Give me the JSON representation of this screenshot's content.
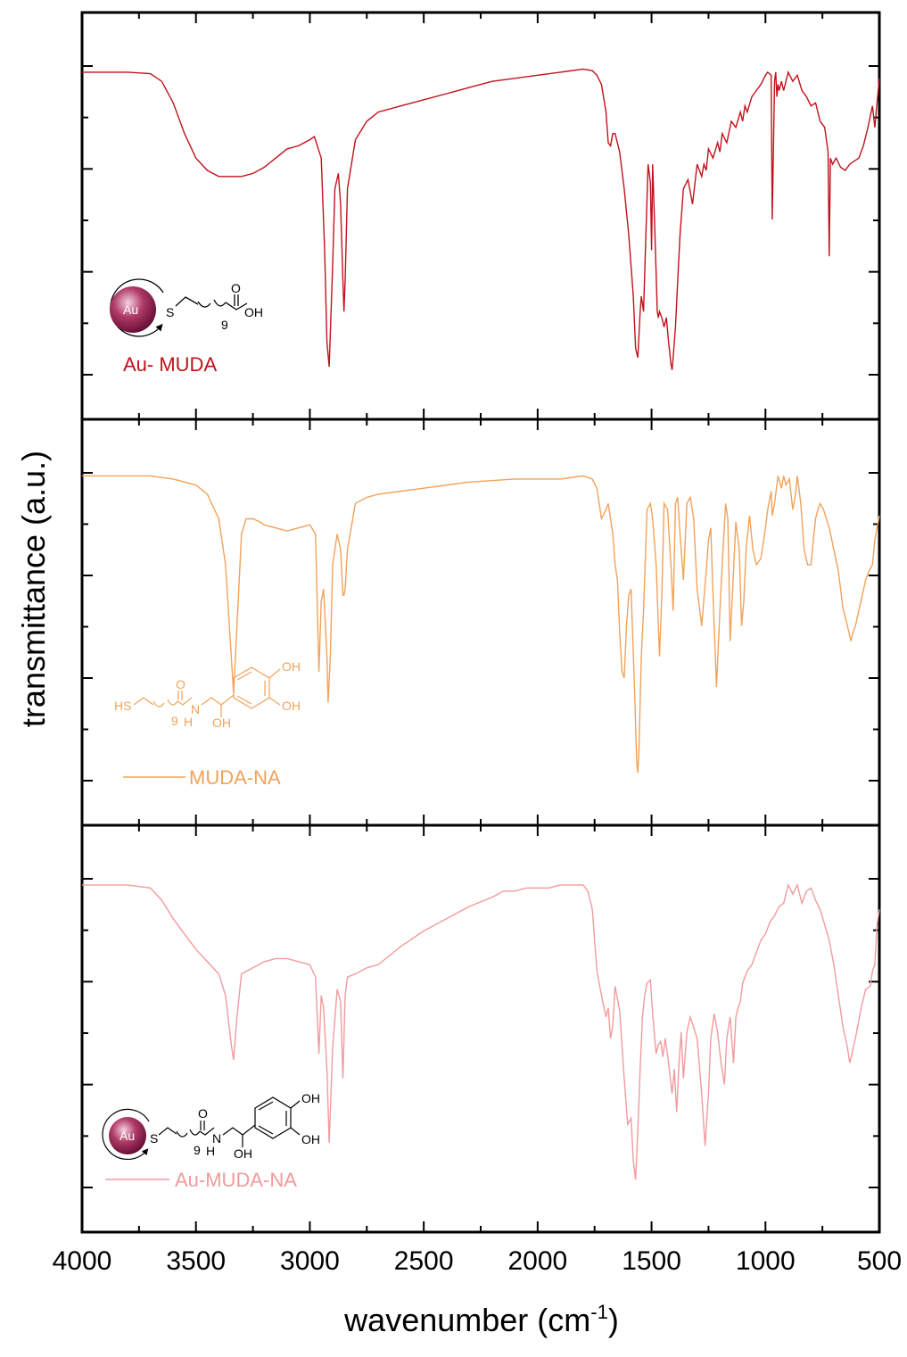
{
  "chart_data": {
    "type": "line",
    "xlabel": "wavenumber (cm",
    "xlabel_sup": "-1",
    "xlabel_end": ")",
    "ylabel": "transmittance (a.u.)",
    "xlim": [
      4000,
      500
    ],
    "x_reversed": true,
    "xticks": [
      "4000",
      "3500",
      "3000",
      "2500",
      "2000",
      "1500",
      "1000",
      "500"
    ],
    "grid": false,
    "panels": [
      {
        "name": "Au- MUDA",
        "color": "#c0121c",
        "legend_line": false,
        "structure": {
          "nanoparticle": "Au",
          "labels": [
            "Au",
            "S",
            "9",
            "O",
            "OH"
          ]
        },
        "x": [
          4000,
          3800,
          3700,
          3650,
          3600,
          3550,
          3500,
          3450,
          3400,
          3350,
          3300,
          3250,
          3200,
          3150,
          3100,
          3050,
          3000,
          2980,
          2950,
          2935,
          2925,
          2915,
          2900,
          2890,
          2875,
          2865,
          2855,
          2850,
          2845,
          2835,
          2800,
          2750,
          2700,
          2600,
          2500,
          2400,
          2300,
          2200,
          2100,
          2000,
          1900,
          1800,
          1760,
          1740,
          1720,
          1700,
          1690,
          1680,
          1670,
          1660,
          1640,
          1620,
          1600,
          1580,
          1570,
          1560,
          1550,
          1545,
          1535,
          1525,
          1515,
          1505,
          1500,
          1495,
          1485,
          1475,
          1470,
          1465,
          1455,
          1445,
          1435,
          1425,
          1415,
          1410,
          1405,
          1395,
          1385,
          1375,
          1360,
          1340,
          1320,
          1300,
          1280,
          1270,
          1260,
          1250,
          1230,
          1210,
          1200,
          1190,
          1170,
          1150,
          1130,
          1110,
          1100,
          1090,
          1080,
          1060,
          1040,
          1020,
          1000,
          990,
          975,
          970,
          960,
          955,
          950,
          945,
          940,
          930,
          920,
          900,
          880,
          860,
          840,
          820,
          800,
          780,
          760,
          740,
          725,
          720,
          715,
          705,
          690,
          670,
          650,
          630,
          610,
          590,
          570,
          550,
          530,
          520,
          510,
          500
        ],
        "y": [
          0.98,
          0.98,
          0.975,
          0.95,
          0.88,
          0.78,
          0.7,
          0.66,
          0.64,
          0.64,
          0.64,
          0.65,
          0.67,
          0.7,
          0.73,
          0.74,
          0.76,
          0.77,
          0.7,
          0.4,
          0.1,
          0.02,
          0.35,
          0.6,
          0.65,
          0.55,
          0.3,
          0.2,
          0.3,
          0.6,
          0.76,
          0.82,
          0.85,
          0.87,
          0.89,
          0.91,
          0.93,
          0.95,
          0.96,
          0.97,
          0.98,
          0.99,
          0.985,
          0.97,
          0.94,
          0.85,
          0.75,
          0.74,
          0.78,
          0.78,
          0.72,
          0.6,
          0.45,
          0.25,
          0.08,
          0.05,
          0.2,
          0.25,
          0.2,
          0.45,
          0.68,
          0.62,
          0.4,
          0.68,
          0.45,
          0.2,
          0.18,
          0.2,
          0.18,
          0.15,
          0.18,
          0.1,
          0.03,
          0.01,
          0.05,
          0.15,
          0.3,
          0.45,
          0.6,
          0.63,
          0.55,
          0.68,
          0.64,
          0.68,
          0.66,
          0.73,
          0.7,
          0.75,
          0.72,
          0.78,
          0.75,
          0.82,
          0.8,
          0.85,
          0.82,
          0.87,
          0.85,
          0.9,
          0.92,
          0.94,
          0.97,
          0.98,
          0.97,
          0.5,
          0.95,
          0.98,
          0.9,
          0.94,
          0.92,
          0.95,
          0.92,
          0.98,
          0.95,
          0.97,
          0.92,
          0.9,
          0.87,
          0.88,
          0.82,
          0.8,
          0.72,
          0.38,
          0.7,
          0.68,
          0.7,
          0.67,
          0.66,
          0.68,
          0.69,
          0.7,
          0.74,
          0.8,
          0.87,
          0.8,
          0.88,
          0.96
        ]
      },
      {
        "name": "MUDA-NA",
        "color": "#f2a25a",
        "legend_line": true,
        "structure": {
          "nanoparticle": "",
          "labels": [
            "HS",
            "9",
            "O",
            "N",
            "H",
            "OH",
            "OH",
            "OH"
          ]
        },
        "x": [
          4000,
          3700,
          3600,
          3500,
          3450,
          3400,
          3370,
          3345,
          3335,
          3320,
          3300,
          3280,
          3250,
          3220,
          3200,
          3150,
          3100,
          3050,
          3000,
          2975,
          2960,
          2950,
          2940,
          2925,
          2920,
          2910,
          2900,
          2880,
          2865,
          2855,
          2850,
          2845,
          2835,
          2800,
          2750,
          2700,
          2500,
          2300,
          2100,
          2000,
          1900,
          1800,
          1760,
          1740,
          1720,
          1700,
          1690,
          1680,
          1670,
          1660,
          1650,
          1640,
          1630,
          1620,
          1610,
          1600,
          1590,
          1575,
          1565,
          1560,
          1555,
          1545,
          1535,
          1520,
          1505,
          1495,
          1480,
          1465,
          1455,
          1445,
          1430,
          1415,
          1405,
          1395,
          1385,
          1375,
          1360,
          1345,
          1330,
          1315,
          1300,
          1280,
          1260,
          1250,
          1245,
          1240,
          1230,
          1215,
          1200,
          1190,
          1175,
          1165,
          1155,
          1145,
          1130,
          1115,
          1105,
          1095,
          1085,
          1070,
          1055,
          1040,
          1020,
          1000,
          990,
          975,
          970,
          960,
          945,
          930,
          920,
          910,
          895,
          880,
          870,
          860,
          845,
          830,
          815,
          800,
          790,
          780,
          770,
          760,
          745,
          720,
          700,
          680,
          660,
          640,
          625,
          615,
          605,
          590,
          575,
          560,
          545,
          530,
          520,
          510,
          500
        ],
        "y": [
          0.99,
          0.99,
          0.98,
          0.96,
          0.93,
          0.85,
          0.7,
          0.4,
          0.28,
          0.5,
          0.8,
          0.85,
          0.85,
          0.84,
          0.83,
          0.82,
          0.81,
          0.82,
          0.83,
          0.8,
          0.35,
          0.58,
          0.62,
          0.4,
          0.25,
          0.4,
          0.7,
          0.8,
          0.75,
          0.6,
          0.6,
          0.62,
          0.75,
          0.9,
          0.92,
          0.93,
          0.95,
          0.97,
          0.98,
          0.98,
          0.98,
          0.99,
          0.98,
          0.95,
          0.85,
          0.88,
          0.9,
          0.85,
          0.8,
          0.7,
          0.65,
          0.48,
          0.35,
          0.33,
          0.5,
          0.6,
          0.62,
          0.3,
          0.05,
          0.02,
          0.1,
          0.4,
          0.55,
          0.88,
          0.9,
          0.85,
          0.7,
          0.4,
          0.6,
          0.9,
          0.88,
          0.7,
          0.55,
          0.9,
          0.92,
          0.8,
          0.65,
          0.9,
          0.92,
          0.85,
          0.62,
          0.5,
          0.68,
          0.78,
          0.8,
          0.82,
          0.6,
          0.3,
          0.55,
          0.7,
          0.9,
          0.85,
          0.45,
          0.6,
          0.84,
          0.75,
          0.5,
          0.58,
          0.75,
          0.86,
          0.75,
          0.7,
          0.72,
          0.82,
          0.88,
          0.94,
          0.86,
          0.9,
          0.99,
          0.95,
          0.99,
          0.96,
          0.98,
          0.88,
          0.92,
          0.99,
          0.9,
          0.75,
          0.7,
          0.7,
          0.78,
          0.85,
          0.88,
          0.9,
          0.88,
          0.82,
          0.75,
          0.68,
          0.56,
          0.5,
          0.45,
          0.48,
          0.5,
          0.55,
          0.6,
          0.65,
          0.68,
          0.7,
          0.78,
          0.82,
          0.86
        ]
      },
      {
        "name": "Au-MUDA-NA",
        "color": "#f19b9d",
        "legend_line": true,
        "structure": {
          "nanoparticle": "Au",
          "labels": [
            "Au",
            "S",
            "9",
            "O",
            "N",
            "H",
            "OH",
            "OH",
            "OH"
          ]
        },
        "x": [
          4000,
          3800,
          3700,
          3650,
          3600,
          3550,
          3500,
          3450,
          3400,
          3370,
          3345,
          3335,
          3320,
          3300,
          3250,
          3200,
          3150,
          3100,
          3050,
          3000,
          2975,
          2960,
          2950,
          2940,
          2925,
          2915,
          2900,
          2880,
          2865,
          2855,
          2845,
          2835,
          2800,
          2750,
          2700,
          2650,
          2600,
          2500,
          2400,
          2300,
          2200,
          2150,
          2100,
          2050,
          2000,
          1950,
          1900,
          1850,
          1800,
          1780,
          1760,
          1740,
          1720,
          1700,
          1690,
          1680,
          1670,
          1660,
          1640,
          1620,
          1605,
          1590,
          1580,
          1570,
          1560,
          1550,
          1540,
          1530,
          1520,
          1505,
          1495,
          1480,
          1470,
          1460,
          1450,
          1440,
          1425,
          1410,
          1400,
          1390,
          1380,
          1370,
          1360,
          1345,
          1330,
          1300,
          1280,
          1265,
          1250,
          1240,
          1225,
          1210,
          1195,
          1180,
          1170,
          1155,
          1140,
          1130,
          1120,
          1110,
          1100,
          1080,
          1060,
          1040,
          1020,
          1000,
          980,
          960,
          940,
          920,
          900,
          880,
          860,
          840,
          820,
          800,
          780,
          760,
          740,
          720,
          700,
          680,
          660,
          640,
          630,
          620,
          600,
          580,
          560,
          540,
          530,
          520,
          510,
          500
        ],
        "y": [
          0.98,
          0.98,
          0.97,
          0.93,
          0.87,
          0.82,
          0.77,
          0.73,
          0.69,
          0.62,
          0.46,
          0.41,
          0.55,
          0.69,
          0.71,
          0.73,
          0.74,
          0.74,
          0.73,
          0.72,
          0.68,
          0.43,
          0.62,
          0.58,
          0.38,
          0.14,
          0.45,
          0.64,
          0.6,
          0.35,
          0.62,
          0.68,
          0.69,
          0.71,
          0.72,
          0.75,
          0.78,
          0.83,
          0.87,
          0.91,
          0.94,
          0.96,
          0.96,
          0.97,
          0.97,
          0.97,
          0.98,
          0.98,
          0.98,
          0.96,
          0.9,
          0.7,
          0.62,
          0.55,
          0.58,
          0.48,
          0.52,
          0.65,
          0.57,
          0.35,
          0.2,
          0.22,
          0.08,
          0.02,
          0.18,
          0.38,
          0.55,
          0.62,
          0.66,
          0.67,
          0.56,
          0.43,
          0.46,
          0.47,
          0.42,
          0.48,
          0.4,
          0.3,
          0.38,
          0.24,
          0.39,
          0.5,
          0.35,
          0.5,
          0.55,
          0.48,
          0.3,
          0.13,
          0.3,
          0.48,
          0.56,
          0.5,
          0.4,
          0.33,
          0.48,
          0.55,
          0.4,
          0.55,
          0.58,
          0.6,
          0.66,
          0.7,
          0.72,
          0.76,
          0.8,
          0.82,
          0.86,
          0.88,
          0.91,
          0.92,
          0.98,
          0.95,
          0.98,
          0.92,
          0.96,
          0.97,
          0.93,
          0.9,
          0.85,
          0.8,
          0.72,
          0.62,
          0.52,
          0.45,
          0.4,
          0.43,
          0.5,
          0.58,
          0.64,
          0.65,
          0.7,
          0.72,
          0.85,
          0.9
        ]
      }
    ]
  }
}
